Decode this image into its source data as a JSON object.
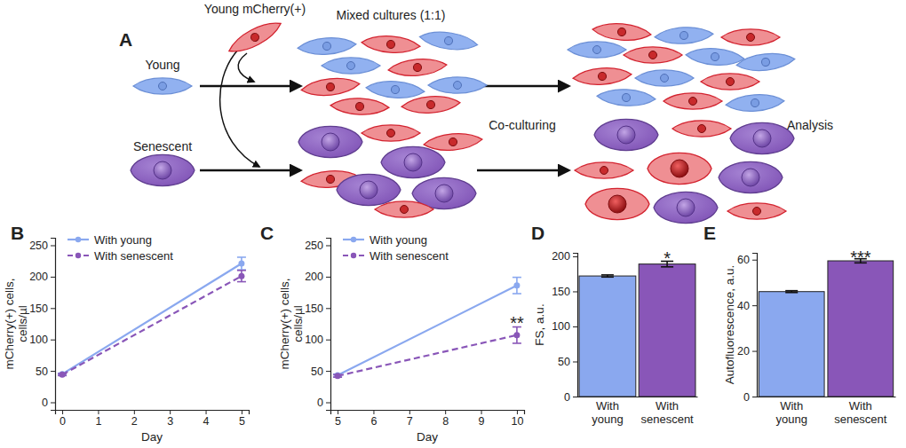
{
  "diagram": {
    "panel": "A",
    "young_mcherry": "Young mCherry(+)",
    "young": "Young",
    "senescent": "Senescent",
    "mixed": "Mixed cultures (1:1)",
    "coculturing": "Co-culturing",
    "analysis": "Analysis"
  },
  "chart_data": [
    {
      "type": "line",
      "title": "B",
      "x_label": "Day",
      "y_label": [
        "mCherry(+) cells,",
        "cells/µl"
      ],
      "x": [
        0,
        5
      ],
      "xlim": [
        -0.2,
        5.2
      ],
      "xticks": [
        0,
        1,
        2,
        3,
        4,
        5
      ],
      "ylim": [
        -12,
        262
      ],
      "yticks": [
        0,
        50,
        100,
        150,
        200,
        250
      ],
      "legend": "upper left",
      "series": [
        {
          "name": "With young",
          "color": "#8aa8ef",
          "values": [
            45,
            221
          ],
          "errors": [
            1.5,
            10
          ],
          "line_style": "solid",
          "marker": "circle"
        },
        {
          "name": "With senescent",
          "color": "#8956b8",
          "values": [
            44,
            201
          ],
          "errors": [
            1.5,
            9
          ],
          "line_style": "dashed",
          "marker": "circle"
        }
      ]
    },
    {
      "type": "line",
      "title": "C",
      "x_label": "Day",
      "y_label": [
        "mCherry(+) cells,",
        "cells/µl"
      ],
      "x": [
        5,
        10
      ],
      "xlim": [
        4.8,
        10.2
      ],
      "xticks": [
        5,
        6,
        7,
        8,
        9,
        10
      ],
      "ylim": [
        -12,
        262
      ],
      "yticks": [
        0,
        50,
        100,
        150,
        200,
        250
      ],
      "legend": "upper left",
      "series": [
        {
          "name": "With young",
          "color": "#8aa8ef",
          "values": [
            43,
            186
          ],
          "errors": [
            2,
            13
          ],
          "line_style": "solid",
          "marker": "circle"
        },
        {
          "name": "With senescent",
          "color": "#8956b8",
          "values": [
            42,
            107
          ],
          "errors": [
            2,
            13
          ],
          "line_style": "dashed",
          "marker": "circle"
        }
      ],
      "annotations": [
        {
          "text": "**",
          "x": 10,
          "y": 127
        }
      ]
    },
    {
      "type": "bar",
      "title": "D",
      "y_label": "FS, a.u.",
      "categories": [
        "With young",
        "With senescent"
      ],
      "values": [
        172,
        189
      ],
      "errors": [
        1.5,
        4
      ],
      "colors": [
        "#8aa8ef",
        "#8956b8"
      ],
      "ylim": [
        0,
        205
      ],
      "yticks": [
        0,
        50,
        100,
        150,
        200
      ],
      "annotations": [
        {
          "text": "*",
          "x": "With senescent",
          "y": 198
        }
      ]
    },
    {
      "type": "bar",
      "title": "E",
      "y_label": "Autofluorescence, a.u.",
      "categories": [
        "With young",
        "With senescent"
      ],
      "values": [
        46,
        59.5
      ],
      "errors": [
        0.4,
        0.9
      ],
      "colors": [
        "#8aa8ef",
        "#8956b8"
      ],
      "ylim": [
        0,
        63
      ],
      "yticks": [
        0,
        20,
        40,
        60
      ],
      "annotations": [
        {
          "text": "***",
          "x": "With senescent",
          "y": 61
        }
      ]
    }
  ]
}
